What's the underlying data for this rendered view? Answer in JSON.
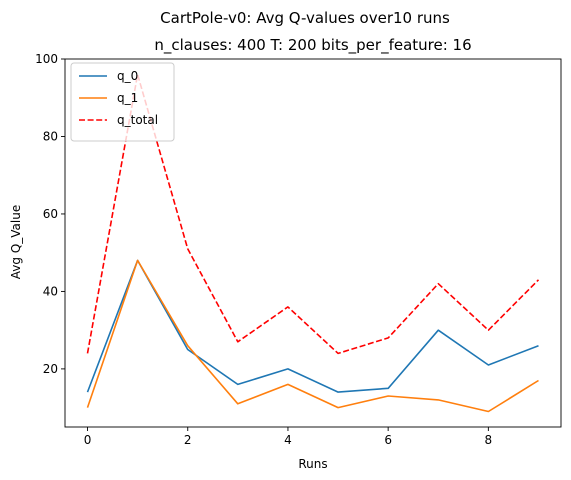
{
  "chart_data": {
    "type": "line",
    "title": "CartPole-v0: Avg Q-values over10 runs",
    "subtitle": "n_clauses: 400 T: 200 bits_per_feature: 16",
    "xlabel": "Runs",
    "ylabel": "Avg Q_Value",
    "x": [
      0,
      1,
      2,
      3,
      4,
      5,
      6,
      7,
      8,
      9
    ],
    "xlim": [
      -0.45,
      9.45
    ],
    "ylim": [
      5,
      100
    ],
    "xticks": [
      0,
      2,
      4,
      6,
      8
    ],
    "xtick_labels": [
      "0",
      "2",
      "4",
      "6",
      "8"
    ],
    "yticks": [
      20,
      40,
      60,
      80,
      100
    ],
    "ytick_labels": [
      "20",
      "40",
      "60",
      "80",
      "100"
    ],
    "grid": false,
    "legend_position": "top-left",
    "series": [
      {
        "name": "q_0",
        "color": "#1f77b4",
        "dashed": false,
        "values": [
          14,
          48,
          25,
          16,
          20,
          14,
          15,
          30,
          21,
          26
        ]
      },
      {
        "name": "q_1",
        "color": "#ff7f0e",
        "dashed": false,
        "values": [
          10,
          48,
          26,
          11,
          16,
          10,
          13,
          12,
          9,
          17
        ]
      },
      {
        "name": "q_total",
        "color": "#ff0000",
        "dashed": true,
        "values": [
          24,
          96,
          51,
          27,
          36,
          24,
          28,
          42,
          30,
          43
        ]
      }
    ]
  }
}
